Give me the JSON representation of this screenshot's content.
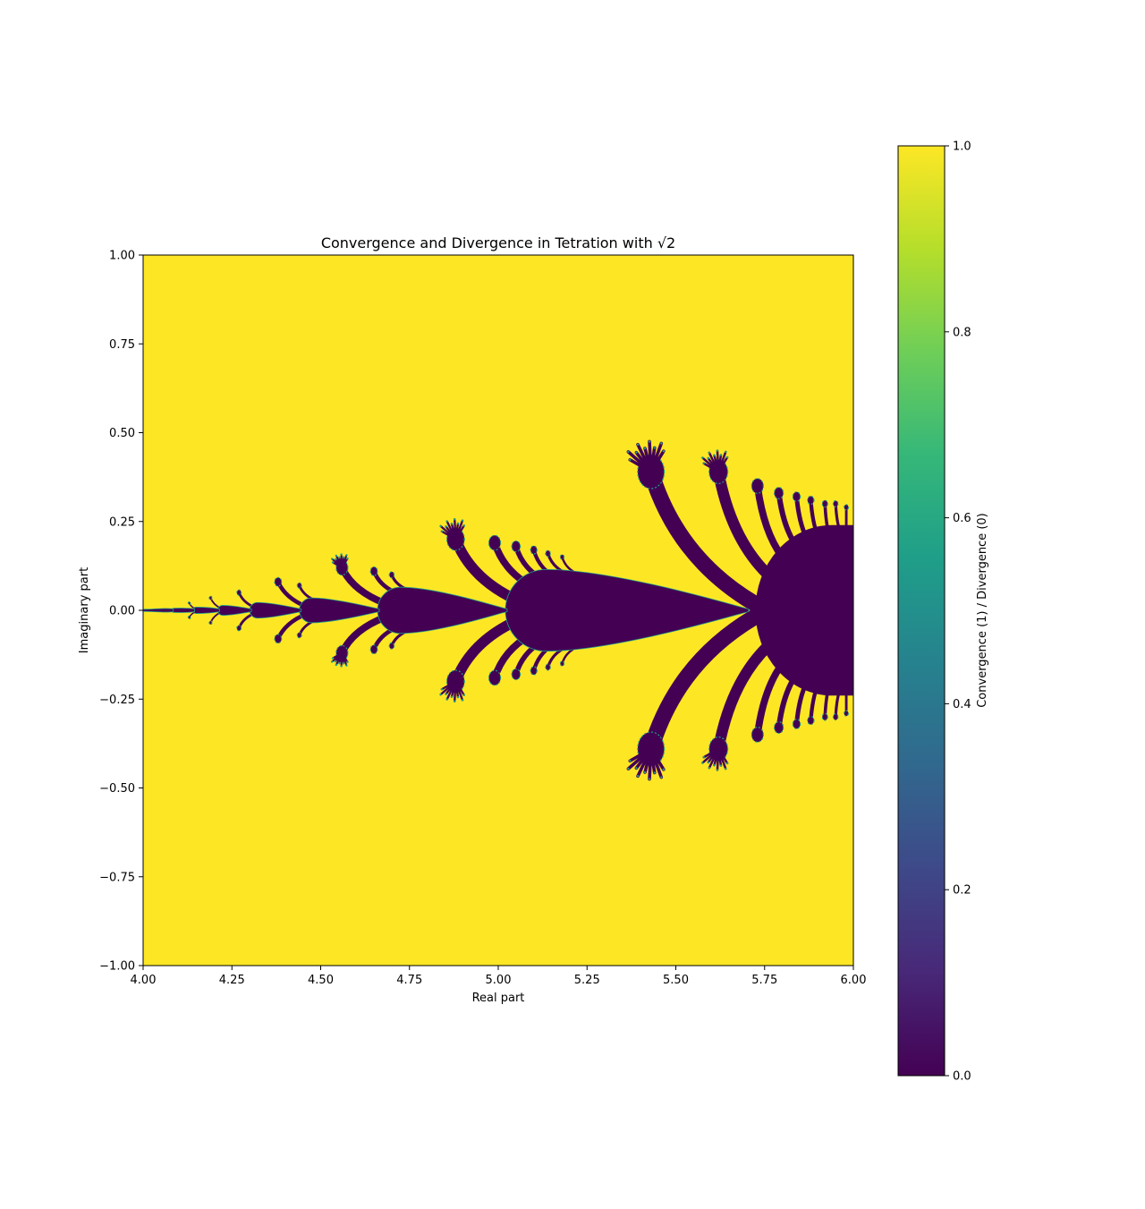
{
  "chart_data": {
    "type": "heatmap",
    "title": "Convergence and Divergence in Tetration with √2",
    "xlabel": "Real part",
    "ylabel": "Imaginary part",
    "xlim": [
      4.0,
      6.0
    ],
    "ylim": [
      -1.0,
      1.0
    ],
    "x_ticks": [
      4.0,
      4.25,
      4.5,
      4.75,
      5.0,
      5.25,
      5.5,
      5.75,
      6.0
    ],
    "x_tick_labels": [
      "4.00",
      "4.25",
      "4.50",
      "4.75",
      "5.00",
      "5.25",
      "5.50",
      "5.75",
      "6.00"
    ],
    "y_ticks": [
      1.0,
      0.75,
      0.5,
      0.25,
      0.0,
      -0.25,
      -0.5,
      -0.75,
      -1.0
    ],
    "y_tick_labels": [
      "1.00",
      "0.75",
      "0.50",
      "0.25",
      "0.00",
      "−0.25",
      "−0.50",
      "−0.75",
      "−1.00"
    ],
    "colorbar": {
      "label": "Convergence (1) / Divergence (0)",
      "colormap": "viridis",
      "range": [
        0.0,
        1.0
      ],
      "ticks": [
        0.0,
        0.2,
        0.4,
        0.6,
        0.8,
        1.0
      ],
      "tick_labels": [
        "0.0",
        "0.2",
        "0.4",
        "0.6",
        "0.8",
        "1.0"
      ],
      "stops": [
        "#440154",
        "#482878",
        "#3e4989",
        "#31688e",
        "#26828e",
        "#1f9e89",
        "#35b779",
        "#6ece58",
        "#b5de2b",
        "#fde725"
      ]
    },
    "background_value": 1,
    "region_value": 0,
    "divergence_regions": [
      {
        "kind": "main_blob",
        "x_start": 5.7,
        "x_end": 6.0,
        "half_height": 0.24
      },
      {
        "kind": "blob",
        "x_start": 5.02,
        "x_end": 5.7,
        "half_height": 0.115
      },
      {
        "kind": "blob",
        "x_start": 4.66,
        "x_end": 5.02,
        "half_height": 0.065
      },
      {
        "kind": "blob",
        "x_start": 4.44,
        "x_end": 4.66,
        "half_height": 0.035
      },
      {
        "kind": "blob",
        "x_start": 4.3,
        "x_end": 4.44,
        "half_height": 0.022
      },
      {
        "kind": "blob",
        "x_start": 4.21,
        "x_end": 4.3,
        "half_height": 0.014
      },
      {
        "kind": "blob",
        "x_start": 4.14,
        "x_end": 4.21,
        "half_height": 0.009
      },
      {
        "kind": "blob",
        "x_start": 4.08,
        "x_end": 4.14,
        "half_height": 0.006
      },
      {
        "kind": "blob",
        "x_start": 4.0,
        "x_end": 4.08,
        "half_height": 0.003
      }
    ],
    "tendrils": [
      {
        "base_x": 5.72,
        "base_y": 0.02,
        "tip_x": 5.43,
        "tip_y": 0.39,
        "width": 0.05,
        "fan": true
      },
      {
        "base_x": 5.76,
        "base_y": 0.1,
        "tip_x": 5.62,
        "tip_y": 0.39,
        "width": 0.035,
        "fan": true
      },
      {
        "base_x": 5.8,
        "base_y": 0.15,
        "tip_x": 5.73,
        "tip_y": 0.35,
        "width": 0.022,
        "fan": false
      },
      {
        "base_x": 5.84,
        "base_y": 0.18,
        "tip_x": 5.79,
        "tip_y": 0.33,
        "width": 0.017,
        "fan": false
      },
      {
        "base_x": 5.87,
        "base_y": 0.2,
        "tip_x": 5.84,
        "tip_y": 0.32,
        "width": 0.014,
        "fan": false
      },
      {
        "base_x": 5.9,
        "base_y": 0.21,
        "tip_x": 5.88,
        "tip_y": 0.31,
        "width": 0.012,
        "fan": false
      },
      {
        "base_x": 5.93,
        "base_y": 0.22,
        "tip_x": 5.92,
        "tip_y": 0.3,
        "width": 0.01,
        "fan": false
      },
      {
        "base_x": 5.96,
        "base_y": 0.23,
        "tip_x": 5.95,
        "tip_y": 0.3,
        "width": 0.009,
        "fan": false
      },
      {
        "base_x": 5.98,
        "base_y": 0.23,
        "tip_x": 5.98,
        "tip_y": 0.29,
        "width": 0.008,
        "fan": false
      },
      {
        "base_x": 5.05,
        "base_y": 0.03,
        "tip_x": 4.88,
        "tip_y": 0.2,
        "width": 0.033,
        "fan": true
      },
      {
        "base_x": 5.09,
        "base_y": 0.07,
        "tip_x": 4.99,
        "tip_y": 0.19,
        "width": 0.022,
        "fan": false
      },
      {
        "base_x": 5.12,
        "base_y": 0.09,
        "tip_x": 5.05,
        "tip_y": 0.18,
        "width": 0.016,
        "fan": false
      },
      {
        "base_x": 5.15,
        "base_y": 0.1,
        "tip_x": 5.1,
        "tip_y": 0.17,
        "width": 0.012,
        "fan": false
      },
      {
        "base_x": 5.18,
        "base_y": 0.11,
        "tip_x": 5.14,
        "tip_y": 0.16,
        "width": 0.009,
        "fan": false
      },
      {
        "base_x": 5.21,
        "base_y": 0.11,
        "tip_x": 5.18,
        "tip_y": 0.15,
        "width": 0.007,
        "fan": false
      },
      {
        "base_x": 4.68,
        "base_y": 0.02,
        "tip_x": 4.56,
        "tip_y": 0.12,
        "width": 0.022,
        "fan": true
      },
      {
        "base_x": 4.71,
        "base_y": 0.05,
        "tip_x": 4.65,
        "tip_y": 0.11,
        "width": 0.013,
        "fan": false
      },
      {
        "base_x": 4.74,
        "base_y": 0.06,
        "tip_x": 4.7,
        "tip_y": 0.1,
        "width": 0.009,
        "fan": false
      },
      {
        "base_x": 4.46,
        "base_y": 0.01,
        "tip_x": 4.38,
        "tip_y": 0.08,
        "width": 0.013,
        "fan": false
      },
      {
        "base_x": 4.48,
        "base_y": 0.03,
        "tip_x": 4.44,
        "tip_y": 0.07,
        "width": 0.008,
        "fan": false
      },
      {
        "base_x": 4.31,
        "base_y": 0.01,
        "tip_x": 4.27,
        "tip_y": 0.05,
        "width": 0.008,
        "fan": false
      },
      {
        "base_x": 4.22,
        "base_y": 0.005,
        "tip_x": 4.19,
        "tip_y": 0.035,
        "width": 0.005,
        "fan": false
      },
      {
        "base_x": 4.15,
        "base_y": 0.003,
        "tip_x": 4.13,
        "tip_y": 0.02,
        "width": 0.004,
        "fan": false
      }
    ]
  }
}
